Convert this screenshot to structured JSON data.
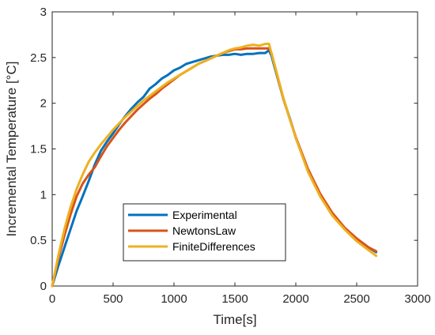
{
  "chart_data": {
    "type": "line",
    "xlabel": "Time[s]",
    "ylabel": "Incremental Temperature [°C]",
    "xlim": [
      0,
      3000
    ],
    "ylim": [
      0,
      3
    ],
    "xticks": [
      0,
      500,
      1000,
      1500,
      2000,
      2500,
      3000
    ],
    "yticks": [
      0,
      0.5,
      1,
      1.5,
      2,
      2.5,
      3
    ],
    "xtick_labels": [
      "0",
      "500",
      "1000",
      "1500",
      "2000",
      "2500",
      "3000"
    ],
    "ytick_labels": [
      "0",
      "0.5",
      "1",
      "1.5",
      "2",
      "2.5",
      "3"
    ],
    "grid": false,
    "legend_position": "lower-center",
    "series": [
      {
        "name": "Experimental",
        "color": "#0072BD",
        "x": [
          0,
          50,
          100,
          150,
          200,
          250,
          300,
          350,
          400,
          450,
          500,
          550,
          600,
          650,
          700,
          750,
          800,
          850,
          900,
          950,
          1000,
          1050,
          1100,
          1150,
          1200,
          1250,
          1300,
          1350,
          1400,
          1450,
          1500,
          1550,
          1600,
          1650,
          1700,
          1750,
          1780,
          1800,
          1850,
          1900,
          1950,
          2000,
          2100,
          2200,
          2300,
          2400,
          2500,
          2600,
          2660
        ],
        "y": [
          0,
          0.22,
          0.42,
          0.62,
          0.82,
          0.98,
          1.15,
          1.33,
          1.48,
          1.58,
          1.67,
          1.77,
          1.86,
          1.94,
          2.01,
          2.07,
          2.16,
          2.21,
          2.27,
          2.31,
          2.36,
          2.39,
          2.43,
          2.45,
          2.47,
          2.49,
          2.51,
          2.52,
          2.53,
          2.53,
          2.54,
          2.53,
          2.54,
          2.54,
          2.55,
          2.55,
          2.58,
          2.52,
          2.28,
          2.04,
          1.84,
          1.62,
          1.27,
          1.0,
          0.79,
          0.63,
          0.52,
          0.42,
          0.37
        ]
      },
      {
        "name": "NewtonsLaw",
        "color": "#D95319",
        "x": [
          0,
          50,
          100,
          150,
          200,
          250,
          300,
          350,
          400,
          450,
          500,
          550,
          600,
          650,
          700,
          750,
          800,
          850,
          900,
          950,
          1000,
          1050,
          1100,
          1150,
          1200,
          1250,
          1300,
          1350,
          1400,
          1450,
          1500,
          1550,
          1600,
          1650,
          1700,
          1750,
          1780,
          1800,
          1850,
          1900,
          1950,
          2000,
          2100,
          2200,
          2300,
          2400,
          2500,
          2600,
          2660
        ],
        "y": [
          0,
          0.3,
          0.55,
          0.78,
          0.98,
          1.12,
          1.22,
          1.3,
          1.42,
          1.53,
          1.62,
          1.71,
          1.79,
          1.86,
          1.93,
          1.99,
          2.05,
          2.1,
          2.16,
          2.21,
          2.26,
          2.31,
          2.35,
          2.39,
          2.43,
          2.46,
          2.49,
          2.52,
          2.55,
          2.57,
          2.59,
          2.59,
          2.6,
          2.6,
          2.6,
          2.6,
          2.6,
          2.55,
          2.29,
          2.04,
          1.83,
          1.63,
          1.28,
          1.01,
          0.8,
          0.64,
          0.52,
          0.42,
          0.38
        ]
      },
      {
        "name": "FiniteDifferences",
        "color": "#EDB120",
        "x": [
          0,
          50,
          100,
          150,
          200,
          250,
          300,
          350,
          400,
          450,
          500,
          550,
          600,
          650,
          700,
          750,
          800,
          850,
          900,
          950,
          1000,
          1050,
          1100,
          1150,
          1200,
          1250,
          1300,
          1350,
          1400,
          1450,
          1500,
          1550,
          1600,
          1650,
          1700,
          1750,
          1780,
          1800,
          1850,
          1900,
          1950,
          2000,
          2100,
          2200,
          2300,
          2400,
          2500,
          2600,
          2660
        ],
        "y": [
          0,
          0.33,
          0.62,
          0.86,
          1.06,
          1.22,
          1.36,
          1.46,
          1.55,
          1.63,
          1.71,
          1.78,
          1.85,
          1.91,
          1.97,
          2.03,
          2.08,
          2.13,
          2.18,
          2.23,
          2.27,
          2.31,
          2.35,
          2.39,
          2.43,
          2.46,
          2.49,
          2.52,
          2.55,
          2.58,
          2.6,
          2.61,
          2.63,
          2.64,
          2.63,
          2.65,
          2.65,
          2.55,
          2.3,
          2.05,
          1.83,
          1.62,
          1.25,
          0.98,
          0.77,
          0.62,
          0.49,
          0.39,
          0.33
        ]
      }
    ]
  }
}
